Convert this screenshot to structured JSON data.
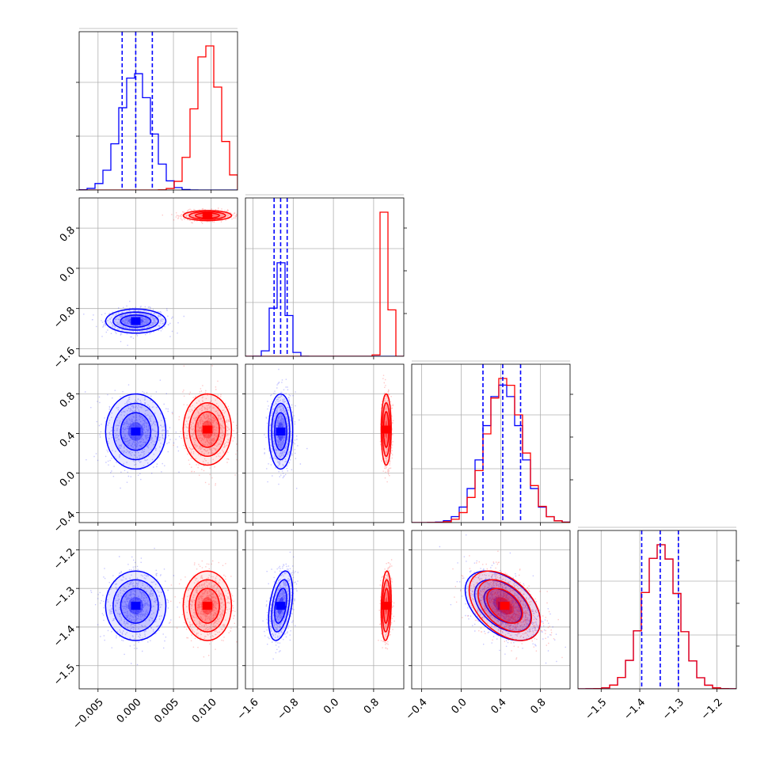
{
  "colors": {
    "blue": "#0000ff",
    "red": "#ff0000",
    "grid": "#b0b0b0"
  },
  "chart_data": {
    "type": "corner",
    "grid": true,
    "parameters": [
      {
        "range": [
          -0.0075,
          0.0135
        ],
        "ticks": [
          -0.005,
          0.0,
          0.005,
          0.01
        ],
        "tick_labels": [
          "−0.005",
          "0.000",
          "0.005",
          "0.010"
        ]
      },
      {
        "range": [
          -1.75,
          1.4
        ],
        "ticks": [
          -1.6,
          -0.8,
          0.0,
          0.8
        ],
        "tick_labels": [
          "−1.6",
          "−0.8",
          "0.0",
          "0.8"
        ]
      },
      {
        "range": [
          -0.5,
          1.1
        ],
        "ticks": [
          -0.4,
          0.0,
          0.4,
          0.8
        ],
        "tick_labels": [
          "−0.4",
          "0.0",
          "0.4",
          "0.8"
        ]
      },
      {
        "range": [
          -1.56,
          -1.15
        ],
        "ticks": [
          -1.5,
          -1.4,
          -1.3,
          -1.2
        ],
        "tick_labels": [
          "−1.5",
          "−1.4",
          "−1.3",
          "−1.2"
        ]
      }
    ],
    "series": [
      {
        "color": "blue",
        "means": [
          0.0,
          -1.05,
          0.42,
          -1.345
        ],
        "sigmas": [
          0.002,
          0.12,
          0.19,
          0.045
        ],
        "corr_23": -0.45,
        "corr_13": 0.4
      },
      {
        "color": "red",
        "means": [
          0.0095,
          1.05,
          0.44,
          -1.345
        ],
        "sigmas": [
          0.0016,
          0.05,
          0.18,
          0.045
        ],
        "corr_23": -0.45,
        "corr_13": 0.15
      }
    ],
    "quantile_lines": [
      [
        -0.0018,
        0.0,
        0.0022
      ],
      [
        -1.18,
        -1.05,
        -0.92
      ],
      [
        0.22,
        0.42,
        0.6
      ],
      [
        -1.395,
        -1.347,
        -1.3
      ]
    ]
  }
}
